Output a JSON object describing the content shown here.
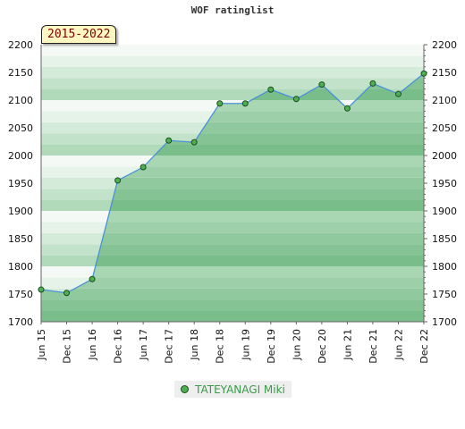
{
  "chart_data": {
    "type": "line",
    "title": "WOF ratinglist",
    "period": "2015-2022",
    "x": [
      "Jun 15",
      "Dec 15",
      "Jun 16",
      "Dec 16",
      "Jun 17",
      "Dec 17",
      "Jun 18",
      "Dec 18",
      "Jun 19",
      "Dec 19",
      "Jun 20",
      "Dec 20",
      "Jun 21",
      "Dec 21",
      "Jun 22",
      "Dec 22"
    ],
    "series": [
      {
        "name": "TATEYANAGI Miki",
        "values": [
          1758,
          1752,
          1777,
          1955,
          1979,
          2027,
          2024,
          2094,
          2094,
          2119,
          2102,
          2128,
          2085,
          2130,
          2111,
          2148
        ]
      }
    ],
    "ylim": [
      1700,
      2200
    ],
    "yticks": [
      1700,
      1750,
      1800,
      1850,
      1900,
      1950,
      2000,
      2050,
      2100,
      2150,
      2200
    ],
    "grid": true,
    "legend_position": "bottom"
  }
}
